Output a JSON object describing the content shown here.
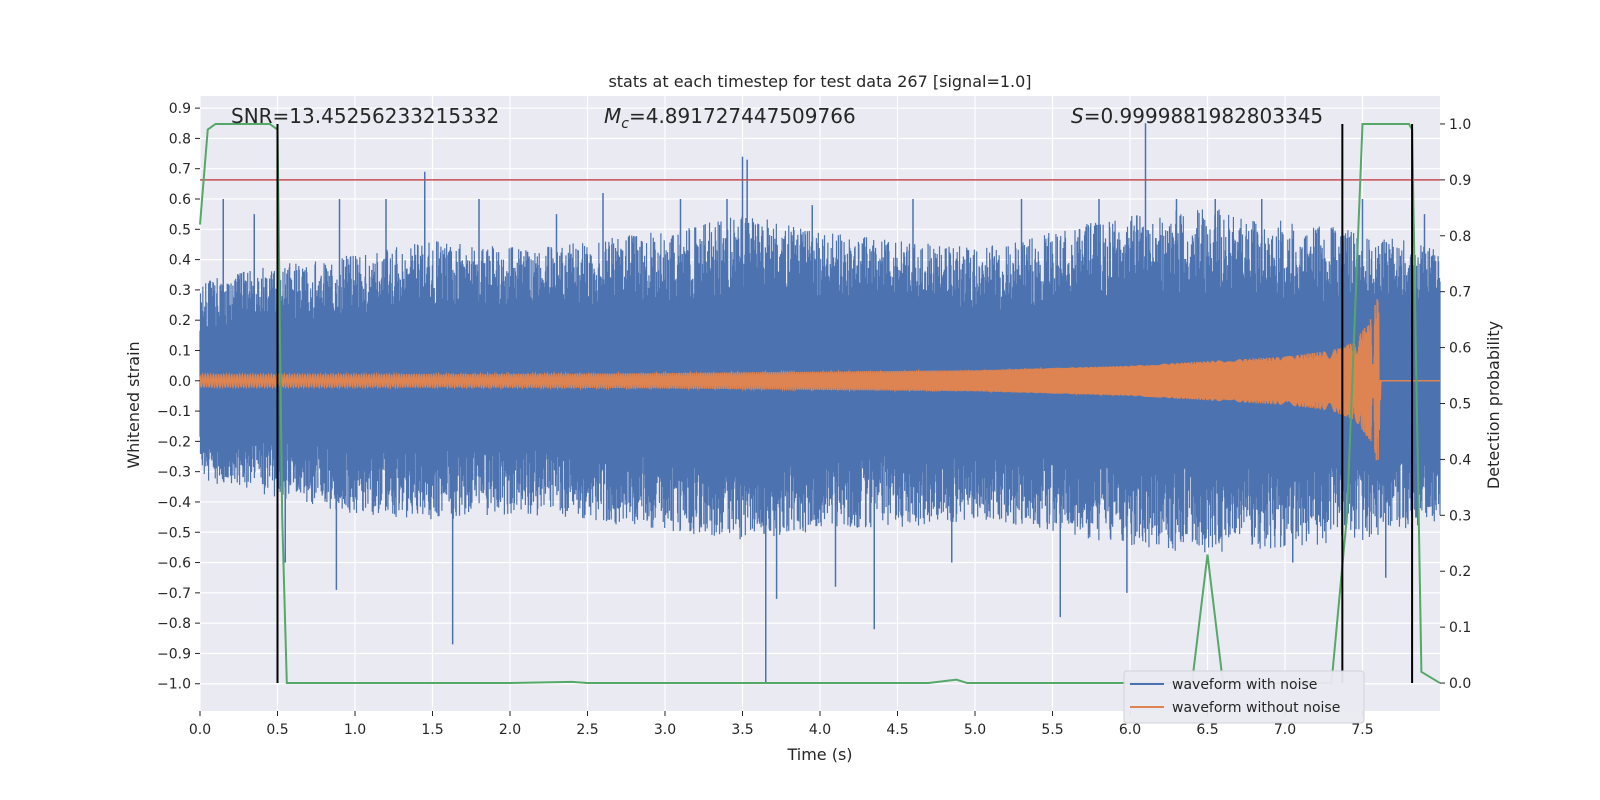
{
  "chart_data": {
    "type": "line",
    "title": "stats at each timestep for test data 267 [signal=1.0]",
    "xlabel": "Time (s)",
    "ylabel": "Whitened strain",
    "y2label": "Detection probability",
    "xlim": [
      0.0,
      8.0
    ],
    "ylim": [
      -1.09,
      0.94
    ],
    "y2lim": [
      -0.05,
      1.05
    ],
    "x_ticks": [
      "0.0",
      "0.5",
      "1.0",
      "1.5",
      "2.0",
      "2.5",
      "3.0",
      "3.5",
      "4.0",
      "4.5",
      "5.0",
      "5.5",
      "6.0",
      "6.5",
      "7.0",
      "7.5"
    ],
    "y_ticks": [
      "0.9",
      "0.8",
      "0.7",
      "0.6",
      "0.5",
      "0.4",
      "0.3",
      "0.2",
      "0.1",
      "0.0",
      "−0.1",
      "−0.2",
      "−0.3",
      "−0.4",
      "−0.5",
      "−0.6",
      "−0.7",
      "−0.8",
      "−0.9",
      "−1.0"
    ],
    "y2_ticks": [
      "1.0",
      "0.9",
      "0.8",
      "0.7",
      "0.6",
      "0.5",
      "0.4",
      "0.3",
      "0.2",
      "0.1",
      "0.0"
    ],
    "grid": true,
    "legend_placement": "lower-right",
    "annotations": {
      "snr": "SNR=13.45256233215332",
      "mc_symbol": "M",
      "mc_sub": "c",
      "mc_value": "=4.891727447509766",
      "s_symbol": "S",
      "s_value": "=0.9999881982803345"
    },
    "series": [
      {
        "name": "waveform with noise",
        "color": "#4c72b0",
        "envelope_upper": [
          [
            0.0,
            0.3
          ],
          [
            0.5,
            0.35
          ],
          [
            1.0,
            0.38
          ],
          [
            1.5,
            0.42
          ],
          [
            2.0,
            0.4
          ],
          [
            2.5,
            0.42
          ],
          [
            3.0,
            0.45
          ],
          [
            3.5,
            0.5
          ],
          [
            4.0,
            0.45
          ],
          [
            4.5,
            0.42
          ],
          [
            5.0,
            0.4
          ],
          [
            5.5,
            0.45
          ],
          [
            6.0,
            0.5
          ],
          [
            6.5,
            0.52
          ],
          [
            7.0,
            0.48
          ],
          [
            7.5,
            0.45
          ],
          [
            8.0,
            0.4
          ]
        ],
        "envelope_lower": [
          [
            0.0,
            -0.3
          ],
          [
            0.5,
            -0.35
          ],
          [
            1.0,
            -0.4
          ],
          [
            1.5,
            -0.42
          ],
          [
            2.0,
            -0.4
          ],
          [
            2.5,
            -0.42
          ],
          [
            3.0,
            -0.45
          ],
          [
            3.5,
            -0.48
          ],
          [
            4.0,
            -0.45
          ],
          [
            4.5,
            -0.44
          ],
          [
            5.0,
            -0.42
          ],
          [
            5.5,
            -0.45
          ],
          [
            6.0,
            -0.5
          ],
          [
            6.5,
            -0.52
          ],
          [
            7.0,
            -0.5
          ],
          [
            7.5,
            -0.48
          ],
          [
            8.0,
            -0.42
          ]
        ],
        "spikes": [
          [
            0.15,
            0.6
          ],
          [
            0.35,
            0.55
          ],
          [
            0.55,
            -0.6
          ],
          [
            0.9,
            0.6
          ],
          [
            0.88,
            -0.69
          ],
          [
            1.2,
            0.6
          ],
          [
            1.45,
            0.69
          ],
          [
            1.63,
            -0.87
          ],
          [
            1.8,
            0.6
          ],
          [
            2.3,
            0.55
          ],
          [
            2.6,
            0.62
          ],
          [
            3.1,
            0.6
          ],
          [
            3.4,
            0.6
          ],
          [
            3.5,
            0.74
          ],
          [
            3.53,
            0.73
          ],
          [
            3.65,
            -1.0
          ],
          [
            3.72,
            -0.72
          ],
          [
            3.95,
            0.58
          ],
          [
            4.1,
            -0.68
          ],
          [
            4.35,
            -0.82
          ],
          [
            4.6,
            0.6
          ],
          [
            4.85,
            -0.6
          ],
          [
            5.3,
            0.6
          ],
          [
            5.55,
            -0.78
          ],
          [
            5.8,
            0.6
          ],
          [
            5.98,
            -0.7
          ],
          [
            6.1,
            0.85
          ],
          [
            6.3,
            0.6
          ],
          [
            6.55,
            0.6
          ],
          [
            6.85,
            0.6
          ],
          [
            7.05,
            -0.6
          ],
          [
            7.5,
            0.6
          ],
          [
            7.65,
            -0.65
          ],
          [
            7.9,
            0.55
          ]
        ]
      },
      {
        "name": "waveform without noise",
        "color": "#dd8452",
        "chirp_amplitude": [
          [
            0.0,
            0.02
          ],
          [
            1.0,
            0.02
          ],
          [
            2.0,
            0.022
          ],
          [
            3.0,
            0.025
          ],
          [
            4.0,
            0.03
          ],
          [
            5.0,
            0.035
          ],
          [
            6.0,
            0.05
          ],
          [
            6.5,
            0.065
          ],
          [
            7.0,
            0.08
          ],
          [
            7.3,
            0.1
          ],
          [
            7.45,
            0.13
          ],
          [
            7.55,
            0.2
          ],
          [
            7.6,
            0.28
          ],
          [
            7.62,
            0.0
          ],
          [
            8.0,
            0.0
          ]
        ],
        "chirp_merger_time": 7.62
      },
      {
        "name": "detection probability",
        "color": "#55a868",
        "axis": "right",
        "x": [
          0.0,
          0.05,
          0.1,
          0.2,
          0.3,
          0.4,
          0.45,
          0.5,
          0.53,
          0.56,
          0.6,
          1.0,
          2.0,
          2.4,
          2.5,
          3.0,
          4.0,
          4.7,
          4.88,
          4.95,
          5.0,
          5.5,
          5.6,
          6.0,
          6.4,
          6.5,
          6.6,
          7.0,
          7.3,
          7.4,
          7.5,
          7.8,
          7.82,
          7.88,
          8.0
        ],
        "values": [
          0.82,
          0.99,
          1.0,
          1.0,
          1.0,
          1.0,
          1.0,
          0.99,
          0.3,
          0.0,
          0.0,
          0.0,
          0.0,
          0.002,
          0.0,
          0.0,
          0.0,
          0.0,
          0.006,
          0.0,
          0.0,
          0.0,
          0.0,
          0.0,
          0.0,
          0.23,
          0.0,
          0.0,
          0.0,
          0.3,
          1.0,
          1.0,
          0.99,
          0.02,
          0.0
        ]
      }
    ],
    "threshold": {
      "value": 0.9,
      "axis": "right",
      "color": "#c44e52"
    },
    "vertical_markers": [
      0.5,
      7.37,
      7.82
    ],
    "vertical_marker_range": [
      0.0,
      1.0
    ]
  }
}
